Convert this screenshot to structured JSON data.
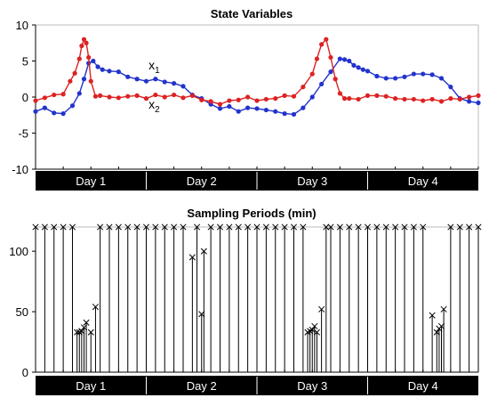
{
  "chart_data": [
    {
      "type": "line",
      "title": "State Variables",
      "xlabel": "",
      "ylabel": "",
      "ylim": [
        -10,
        10
      ],
      "yticks": [
        10,
        5,
        0,
        -5,
        -10
      ],
      "x_unit_hours": 24,
      "xlim": [
        0,
        96
      ],
      "day_labels": [
        "Day 1",
        "Day 2",
        "Day 3",
        "Day 4"
      ],
      "grid": false,
      "annotations": [
        {
          "base": "x",
          "sub": "1",
          "x": 24.5,
          "y": 3.8
        },
        {
          "base": "x",
          "sub": "2",
          "x": 24.5,
          "y": -1.6
        }
      ],
      "series": [
        {
          "color": "#2233cc",
          "x": [
            0,
            2,
            4,
            6,
            8,
            9.5,
            10.5,
            11.5,
            12.5,
            13.5,
            14.5,
            16,
            18,
            20,
            22,
            24,
            26,
            28,
            30,
            32,
            34,
            36,
            38,
            40,
            42,
            44,
            46,
            48,
            50,
            52,
            54,
            56,
            58,
            60,
            62,
            64,
            66,
            67,
            68,
            69,
            70,
            71,
            72,
            74,
            76,
            78,
            80,
            82,
            84,
            86,
            88,
            90,
            92,
            94,
            96
          ],
          "y": [
            -2,
            -1.5,
            -2.2,
            -2.3,
            -1.2,
            0.5,
            2.5,
            4.7,
            5,
            4.2,
            3.8,
            3.6,
            3.5,
            2.8,
            2.5,
            2.2,
            2.5,
            2.1,
            1.9,
            1.5,
            0.3,
            -0.2,
            -1,
            -1.6,
            -1.3,
            -2,
            -1.5,
            -1.6,
            -1.8,
            -2,
            -2.3,
            -2.4,
            -1.5,
            0,
            1.8,
            3.5,
            5.3,
            5.2,
            5,
            4.4,
            4.1,
            3.8,
            3.6,
            2.9,
            2.6,
            2.6,
            2.8,
            3.2,
            3.2,
            3.1,
            2.6,
            1.4,
            -0.2,
            -0.6,
            -0.8
          ]
        },
        {
          "color": "#dd2222",
          "x": [
            0,
            2,
            4,
            6,
            7.5,
            8.5,
            9.5,
            10,
            10.5,
            11,
            11.5,
            12,
            13,
            14,
            16,
            18,
            20,
            22,
            24,
            26,
            28,
            30,
            32,
            34,
            36,
            38,
            40,
            42,
            44,
            46,
            48,
            50,
            52,
            54,
            56,
            58,
            60,
            61,
            62,
            63,
            64,
            65,
            66,
            67,
            68,
            70,
            72,
            74,
            76,
            78,
            80,
            82,
            84,
            86,
            88,
            90,
            92,
            94,
            96
          ],
          "y": [
            -0.5,
            -0.1,
            0.3,
            0.4,
            2.2,
            3.3,
            5.3,
            7.1,
            8,
            7.5,
            5.5,
            2.2,
            0.1,
            0.2,
            0,
            -0.1,
            0.1,
            0.2,
            -0.2,
            0.3,
            0,
            0.3,
            -0.1,
            0.2,
            -0.4,
            -0.6,
            -1,
            -0.5,
            -0.4,
            0,
            -0.5,
            -0.3,
            -0.2,
            0.2,
            0.1,
            1.4,
            3.2,
            5.3,
            7.3,
            8,
            5.5,
            2.5,
            0.5,
            -0.2,
            -0.2,
            -0.3,
            0.2,
            0.2,
            0.1,
            -0.2,
            -0.3,
            -0.3,
            -0.5,
            -0.3,
            -0.6,
            -0.2,
            -0.3,
            0,
            0.2
          ]
        }
      ]
    },
    {
      "type": "stem",
      "title": "Sampling Periods (min)",
      "xlabel": "",
      "ylabel": "",
      "ylim": [
        0,
        120
      ],
      "yticks": [
        100,
        50,
        0
      ],
      "x_unit_hours": 24,
      "xlim": [
        0,
        96
      ],
      "day_labels": [
        "Day 1",
        "Day 2",
        "Day 3",
        "Day 4"
      ],
      "grid": false,
      "x": [
        0,
        2,
        4,
        6,
        8,
        9,
        9.5,
        10,
        10.5,
        11,
        12,
        13,
        14,
        16,
        18,
        20,
        22,
        24,
        26,
        28,
        30,
        32,
        34,
        35,
        36,
        36.5,
        38,
        40,
        42,
        44,
        46,
        48,
        50,
        52,
        54,
        56,
        58,
        59,
        59.5,
        60,
        60.5,
        61,
        62,
        63,
        64,
        66,
        68,
        70,
        72,
        74,
        76,
        78,
        80,
        82,
        84,
        86,
        87,
        87.5,
        88,
        88.5,
        90,
        92,
        94,
        96
      ],
      "values": [
        120,
        120,
        120,
        120,
        120,
        33,
        33,
        34,
        37,
        41,
        33,
        54,
        120,
        120,
        120,
        120,
        120,
        120,
        120,
        120,
        120,
        120,
        95,
        120,
        48,
        100,
        120,
        120,
        120,
        120,
        120,
        120,
        120,
        120,
        120,
        120,
        120,
        33,
        34,
        35,
        38,
        33,
        52,
        120,
        120,
        120,
        120,
        120,
        120,
        120,
        120,
        120,
        120,
        120,
        120,
        47,
        33,
        36,
        38,
        52,
        120,
        120,
        120,
        120
      ]
    }
  ]
}
